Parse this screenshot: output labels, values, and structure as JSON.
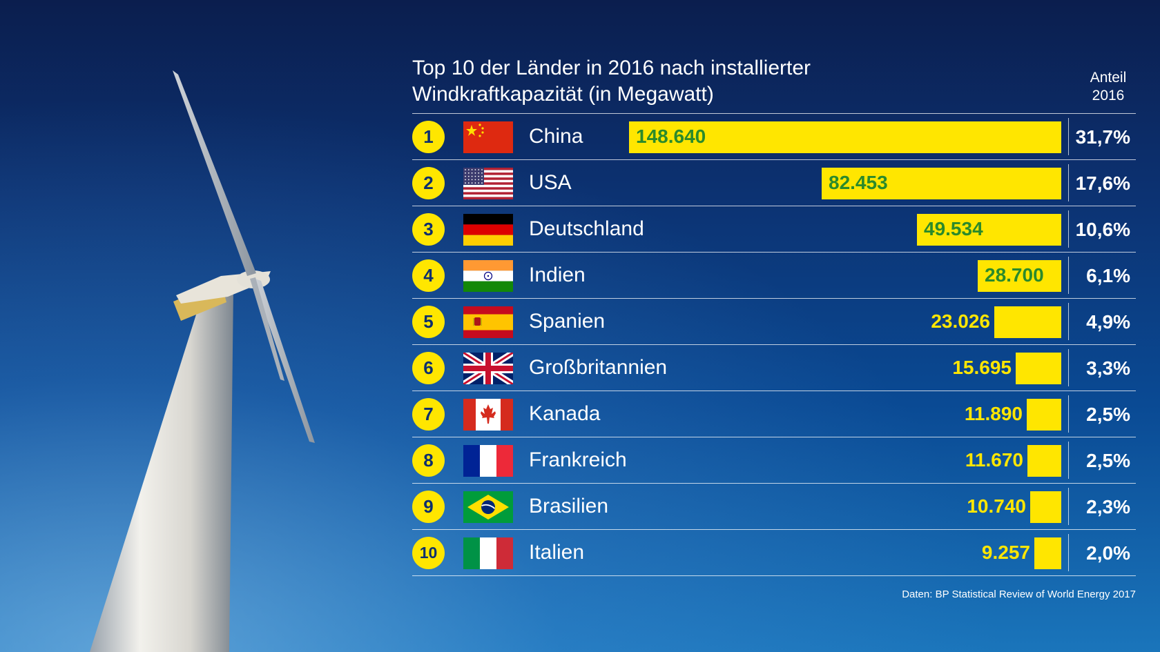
{
  "title": {
    "line1": "Top 10 der Länder in 2016 nach installierter",
    "line2": "Windkraftkapazität (in Megawatt)"
  },
  "share_header": {
    "line1": "Anteil",
    "line2": "2016"
  },
  "source": "Daten: BP Statistical Review of World Energy 2017",
  "colors": {
    "bar": "#ffe600",
    "value_inside": "#2b8a2b",
    "value_outside": "#ffe600",
    "rank_circle": "#ffe600",
    "background": "#0c3272"
  },
  "chart_data": {
    "type": "bar",
    "orientation": "horizontal",
    "title": "Top 10 der Länder in 2016 nach installierter Windkraftkapazität (in Megawatt)",
    "categories": [
      "China",
      "USA",
      "Deutschland",
      "Indien",
      "Spanien",
      "Großbritannien",
      "Kanada",
      "Frankreich",
      "Brasilien",
      "Italien"
    ],
    "ranks": [
      "1",
      "2",
      "3",
      "4",
      "5",
      "6",
      "7",
      "8",
      "9",
      "10"
    ],
    "values": [
      148640,
      82453,
      49534,
      28700,
      23026,
      15695,
      11890,
      11670,
      10740,
      9257
    ],
    "value_labels": [
      "148.640",
      "82.453",
      "49.534",
      "28.700",
      "23.026",
      "15.695",
      "11.890",
      "11.670",
      "10.740",
      "9.257"
    ],
    "shares": [
      "31,7%",
      "17,6%",
      "10,6%",
      "6,1%",
      "4,9%",
      "3,3%",
      "2,5%",
      "2,5%",
      "2,3%",
      "2,0%"
    ],
    "flags": [
      "china-flag",
      "usa-flag",
      "germany-flag",
      "india-flag",
      "spain-flag",
      "uk-flag",
      "canada-flag",
      "france-flag",
      "brazil-flag",
      "italy-flag"
    ],
    "grid": false,
    "legend": "none"
  }
}
